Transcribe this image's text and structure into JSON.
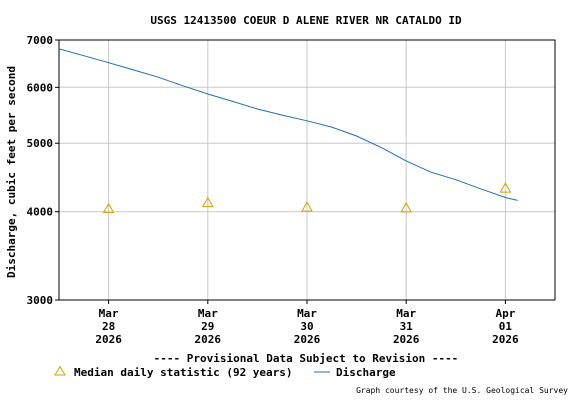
{
  "chart_data": {
    "type": "line",
    "title": "USGS 12413500 COEUR D ALENE RIVER NR CATALDO ID",
    "ylabel": "Discharge, cubic feet per second",
    "xlabel": "",
    "y_scale": "log",
    "ylim": [
      3000,
      7000
    ],
    "y_ticks": [
      {
        "value": 3000,
        "label": "3000"
      },
      {
        "value": 4000,
        "label": "4000"
      },
      {
        "value": 5000,
        "label": "5000"
      },
      {
        "value": 6000,
        "label": "6000"
      },
      {
        "value": 7000,
        "label": "7000"
      }
    ],
    "xlim": [
      "2026-03-27T12:00",
      "2026-04-01T12:00"
    ],
    "x_ticks": [
      {
        "value": "2026-03-28T00:00",
        "label": [
          "Mar",
          "28",
          "2026"
        ]
      },
      {
        "value": "2026-03-29T00:00",
        "label": [
          "Mar",
          "29",
          "2026"
        ]
      },
      {
        "value": "2026-03-30T00:00",
        "label": [
          "Mar",
          "30",
          "2026"
        ]
      },
      {
        "value": "2026-03-31T00:00",
        "label": [
          "Mar",
          "31",
          "2026"
        ]
      },
      {
        "value": "2026-04-01T00:00",
        "label": [
          "Apr",
          "01",
          "2026"
        ]
      }
    ],
    "grid": true,
    "series": [
      {
        "name": "Discharge",
        "kind": "line",
        "color": "#1f6fb4",
        "points": [
          {
            "x": "2026-03-27T12:00",
            "y": 6800
          },
          {
            "x": "2026-03-27T18:00",
            "y": 6650
          },
          {
            "x": "2026-03-28T00:00",
            "y": 6500
          },
          {
            "x": "2026-03-28T06:00",
            "y": 6350
          },
          {
            "x": "2026-03-28T12:00",
            "y": 6200
          },
          {
            "x": "2026-03-28T18:00",
            "y": 6030
          },
          {
            "x": "2026-03-29T00:00",
            "y": 5870
          },
          {
            "x": "2026-03-29T06:00",
            "y": 5730
          },
          {
            "x": "2026-03-29T12:00",
            "y": 5590
          },
          {
            "x": "2026-03-29T18:00",
            "y": 5480
          },
          {
            "x": "2026-03-30T00:00",
            "y": 5380
          },
          {
            "x": "2026-03-30T06:00",
            "y": 5270
          },
          {
            "x": "2026-03-30T12:00",
            "y": 5120
          },
          {
            "x": "2026-03-30T18:00",
            "y": 4930
          },
          {
            "x": "2026-03-31T00:00",
            "y": 4720
          },
          {
            "x": "2026-03-31T06:00",
            "y": 4550
          },
          {
            "x": "2026-03-31T12:00",
            "y": 4440
          },
          {
            "x": "2026-03-31T18:00",
            "y": 4310
          },
          {
            "x": "2026-04-01T00:00",
            "y": 4190
          },
          {
            "x": "2026-04-01T03:00",
            "y": 4150
          }
        ]
      },
      {
        "name": "Median daily statistic (92 years)",
        "kind": "markers",
        "color": "#d4a000",
        "points": [
          {
            "x": "2026-03-28T00:00",
            "y": 4040
          },
          {
            "x": "2026-03-29T00:00",
            "y": 4120
          },
          {
            "x": "2026-03-30T00:00",
            "y": 4060
          },
          {
            "x": "2026-03-31T00:00",
            "y": 4050
          },
          {
            "x": "2026-04-01T00:00",
            "y": 4320
          }
        ]
      }
    ],
    "legend": {
      "placement": "bottom",
      "entries": [
        "Median daily statistic (92 years)",
        "Discharge"
      ]
    },
    "annotations": {
      "provisional": "---- Provisional Data Subject to Revision ----",
      "credit": "Graph courtesy of the U.S. Geological Survey"
    },
    "colors": {
      "provisional": "#e00000",
      "grid": "#c8c8c8",
      "frame": "#000000"
    }
  }
}
